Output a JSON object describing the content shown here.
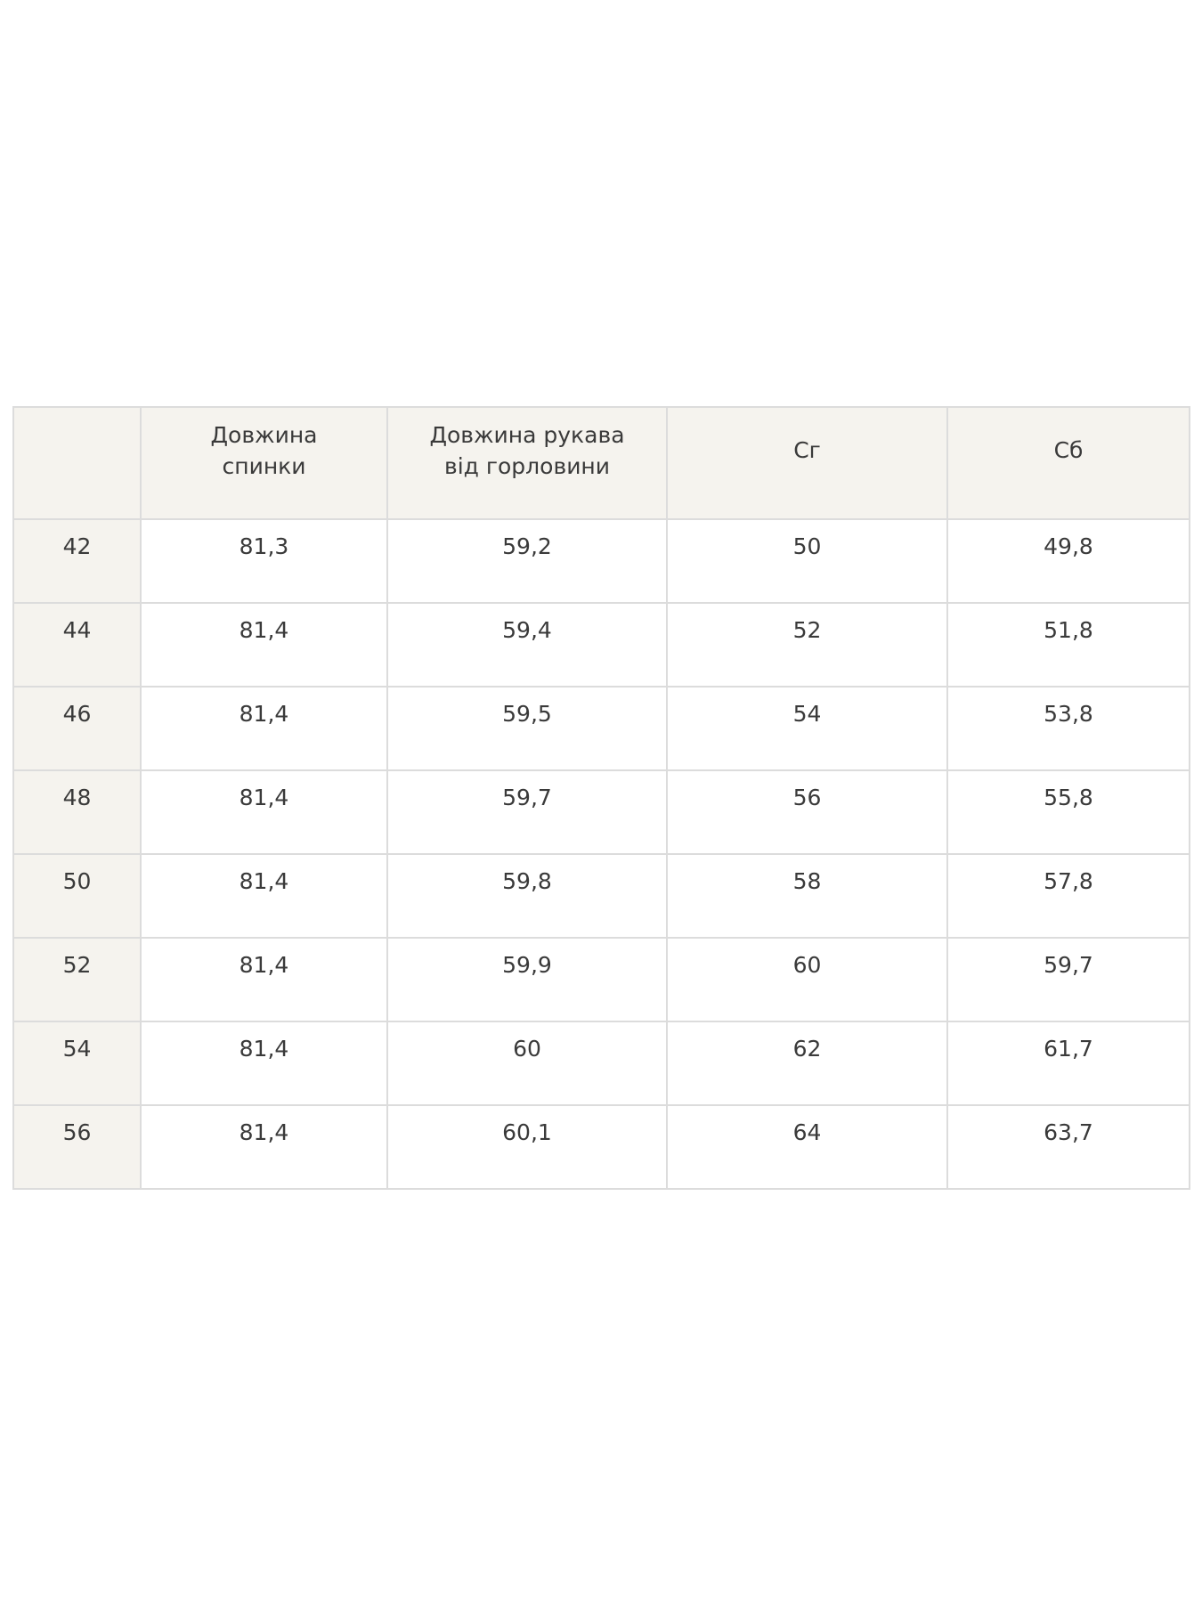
{
  "table": {
    "headers": [
      "",
      "Довжина спинки",
      "Довжина рукава від горловини",
      "Сг",
      "Сб"
    ],
    "header_lines": [
      [
        ""
      ],
      [
        "Довжина",
        "спинки"
      ],
      [
        "Довжина рукава",
        "від горловини"
      ],
      [
        "Сг"
      ],
      [
        "Сб"
      ]
    ],
    "rows": [
      [
        "42",
        "81,3",
        "59,2",
        "50",
        "49,8"
      ],
      [
        "44",
        "81,4",
        "59,4",
        "52",
        "51,8"
      ],
      [
        "46",
        "81,4",
        "59,5",
        "54",
        "53,8"
      ],
      [
        "48",
        "81,4",
        "59,7",
        "56",
        "55,8"
      ],
      [
        "50",
        "81,4",
        "59,8",
        "58",
        "57,8"
      ],
      [
        "52",
        "81,4",
        "59,9",
        "60",
        "59,7"
      ],
      [
        "54",
        "81,4",
        "60",
        "62",
        "61,7"
      ],
      [
        "56",
        "81,4",
        "60,1",
        "64",
        "63,7"
      ]
    ]
  },
  "colors": {
    "header_bg": "#f5f3ee",
    "border": "#dcdcdc",
    "text": "#3a3a3a"
  }
}
